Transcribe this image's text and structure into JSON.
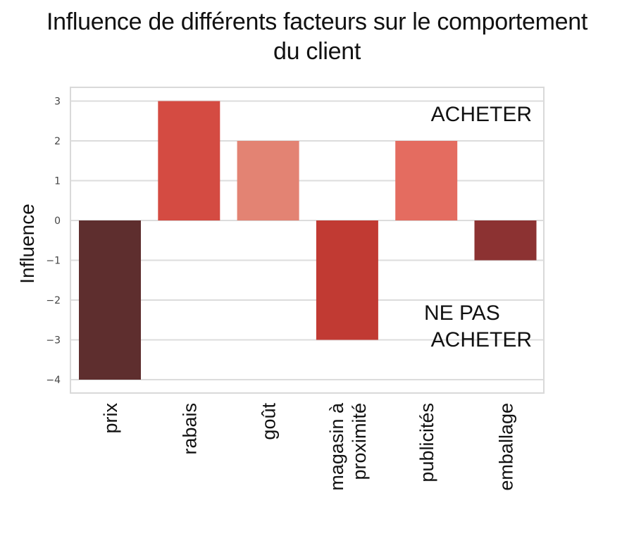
{
  "chart_data": {
    "type": "bar",
    "title_line1": "Influence de différents facteurs sur le comportement",
    "title_line2": "du client",
    "xlabel": "",
    "ylabel": "Influence",
    "ylim": [
      -4.35,
      3.35
    ],
    "yticks": [
      3,
      2,
      1,
      0,
      -1,
      -2,
      -3,
      -4
    ],
    "ytick_labels": [
      "3",
      "2",
      "1",
      "0",
      "−1",
      "−2",
      "−3",
      "−4"
    ],
    "grid": true,
    "categories": [
      [
        "prix"
      ],
      [
        "rabais"
      ],
      [
        "goût"
      ],
      [
        "magasin à",
        "proximité"
      ],
      [
        "publicités"
      ],
      [
        "emballage"
      ]
    ],
    "values": [
      -4,
      3,
      2,
      -3,
      2,
      -1
    ],
    "colors": [
      "#5e2e2e",
      "#d44b42",
      "#e38373",
      "#c13a33",
      "#e46c60",
      "#8c3232"
    ],
    "annotations": {
      "top": "ACHETER",
      "bottom_line1": "NE PAS",
      "bottom_line2": "ACHETER"
    }
  }
}
